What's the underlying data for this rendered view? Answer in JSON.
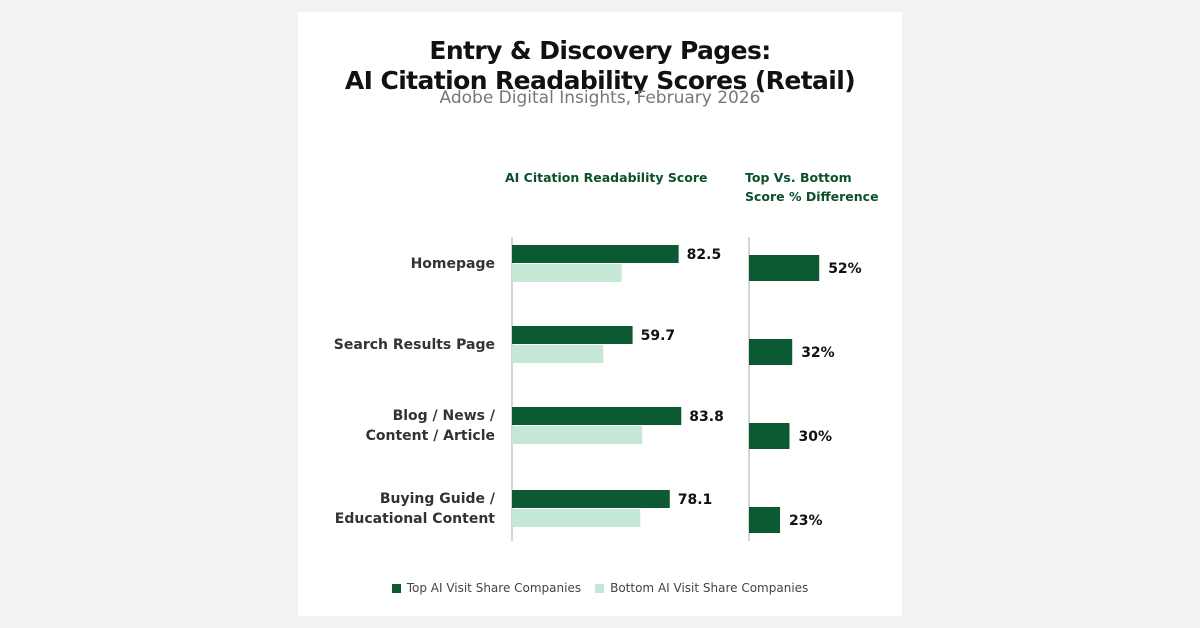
{
  "title_line1": "Entry & Discovery Pages:",
  "title_line2": "AI Citation Readability Scores (Retail)",
  "subtitle": "Adobe Digital Insights, February 2026",
  "left_panel_header": "AI Citation Readability Score",
  "right_panel_header_line1": "Top Vs. Bottom",
  "right_panel_header_line2": "Score % Difference",
  "colors": {
    "top": "#0b5a34",
    "bottom": "#c5e8d6",
    "label_text": "#333333"
  },
  "chart_data": [
    {
      "type": "bar",
      "orientation": "horizontal",
      "categories": [
        [
          "Homepage"
        ],
        [
          "Search Results Page"
        ],
        [
          "Blog / News /",
          "Content / Article"
        ],
        [
          "Buying Guide /",
          "Educational Content"
        ]
      ],
      "series": [
        {
          "name": "Top AI Visit Share Companies",
          "values": [
            82.5,
            59.7,
            83.8,
            78.1
          ],
          "value_labels": [
            "82.5",
            "59.7",
            "83.8",
            "78.1"
          ]
        },
        {
          "name": "Bottom AI Visit Share Companies",
          "values": [
            54.3,
            45.2,
            64.5,
            63.5
          ]
        }
      ],
      "title": "AI Citation Readability Score",
      "xlim": [
        0,
        100
      ]
    },
    {
      "type": "bar",
      "orientation": "horizontal",
      "categories": [
        [
          "Homepage"
        ],
        [
          "Search Results Page"
        ],
        [
          "Blog / News /",
          "Content / Article"
        ],
        [
          "Buying Guide /",
          "Educational Content"
        ]
      ],
      "series": [
        {
          "values": [
            52,
            32,
            30,
            23
          ],
          "value_labels": [
            "52%",
            "32%",
            "30%",
            "23%"
          ]
        }
      ],
      "title": "Top Vs. Bottom Score % Difference",
      "xlim": [
        0,
        100
      ]
    }
  ]
}
